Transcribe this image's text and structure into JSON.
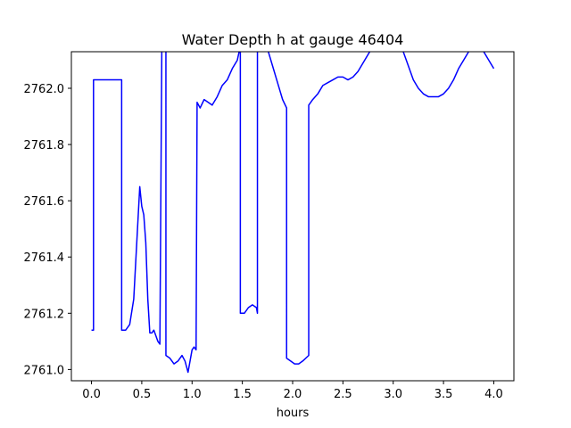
{
  "chart_data": {
    "type": "line",
    "title": "Water Depth h at gauge 46404",
    "xlabel": "hours",
    "ylabel": "",
    "xlim": [
      -0.2,
      4.2
    ],
    "ylim": [
      2760.96,
      2762.13
    ],
    "xticks": [
      0.0,
      0.5,
      1.0,
      1.5,
      2.0,
      2.5,
      3.0,
      3.5,
      4.0
    ],
    "xtick_labels": [
      "0.0",
      "0.5",
      "1.0",
      "1.5",
      "2.0",
      "2.5",
      "3.0",
      "3.5",
      "4.0"
    ],
    "yticks": [
      2761.0,
      2761.2,
      2761.4,
      2761.6,
      2761.8,
      2762.0
    ],
    "ytick_labels": [
      "2761.0",
      "2761.2",
      "2761.4",
      "2761.6",
      "2761.8",
      "2762.0"
    ],
    "grid": false,
    "series": [
      {
        "color": "#0000ff",
        "x": [
          0.0,
          0.02,
          0.02,
          0.1,
          0.2,
          0.3,
          0.3,
          0.34,
          0.38,
          0.42,
          0.45,
          0.48,
          0.5,
          0.52,
          0.54,
          0.56,
          0.58,
          0.6,
          0.62,
          0.64,
          0.66,
          0.68,
          0.7,
          0.7,
          0.72,
          0.74,
          0.74,
          0.78,
          0.82,
          0.86,
          0.9,
          0.93,
          0.96,
          1.0,
          1.02,
          1.04,
          1.05,
          1.05,
          1.08,
          1.12,
          1.16,
          1.2,
          1.25,
          1.3,
          1.35,
          1.4,
          1.45,
          1.48,
          1.48,
          1.52,
          1.56,
          1.6,
          1.64,
          1.65,
          1.65,
          1.7,
          1.75,
          1.8,
          1.85,
          1.9,
          1.94,
          1.94,
          1.98,
          2.02,
          2.06,
          2.1,
          2.16,
          2.16,
          2.2,
          2.25,
          2.3,
          2.35,
          2.4,
          2.45,
          2.5,
          2.55,
          2.6,
          2.65,
          2.7,
          2.75,
          2.8,
          2.85,
          2.9,
          2.95,
          3.0,
          3.05,
          3.1,
          3.15,
          3.2,
          3.25,
          3.3,
          3.35,
          3.4,
          3.45,
          3.5,
          3.55,
          3.6,
          3.65,
          3.7,
          3.75,
          3.8,
          3.85,
          3.9,
          3.95,
          4.0
        ],
        "y": [
          2761.14,
          2761.14,
          2762.03,
          2762.03,
          2762.03,
          2762.03,
          2761.14,
          2761.14,
          2761.16,
          2761.25,
          2761.45,
          2761.65,
          2761.58,
          2761.55,
          2761.45,
          2761.25,
          2761.13,
          2761.13,
          2761.14,
          2761.12,
          2761.1,
          2761.09,
          2762.18,
          2762.18,
          2762.16,
          2762.15,
          2761.05,
          2761.04,
          2761.02,
          2761.03,
          2761.05,
          2761.03,
          2760.99,
          2761.07,
          2761.08,
          2761.07,
          2761.95,
          2761.95,
          2761.93,
          2761.96,
          2761.95,
          2761.94,
          2761.97,
          2762.01,
          2762.03,
          2762.07,
          2762.1,
          2762.15,
          2761.2,
          2761.2,
          2761.22,
          2761.23,
          2761.22,
          2761.2,
          2762.29,
          2762.2,
          2762.14,
          2762.08,
          2762.02,
          2761.96,
          2761.93,
          2761.04,
          2761.03,
          2761.02,
          2761.02,
          2761.03,
          2761.05,
          2761.94,
          2761.96,
          2761.98,
          2762.01,
          2762.02,
          2762.03,
          2762.04,
          2762.04,
          2762.03,
          2762.04,
          2762.06,
          2762.09,
          2762.12,
          2762.15,
          2762.18,
          2762.2,
          2762.21,
          2762.2,
          2762.17,
          2762.13,
          2762.08,
          2762.03,
          2762.0,
          2761.98,
          2761.97,
          2761.97,
          2761.97,
          2761.98,
          2762.0,
          2762.03,
          2762.07,
          2762.1,
          2762.13,
          2762.15,
          2762.15,
          2762.13,
          2762.1,
          2762.07
        ]
      }
    ]
  }
}
